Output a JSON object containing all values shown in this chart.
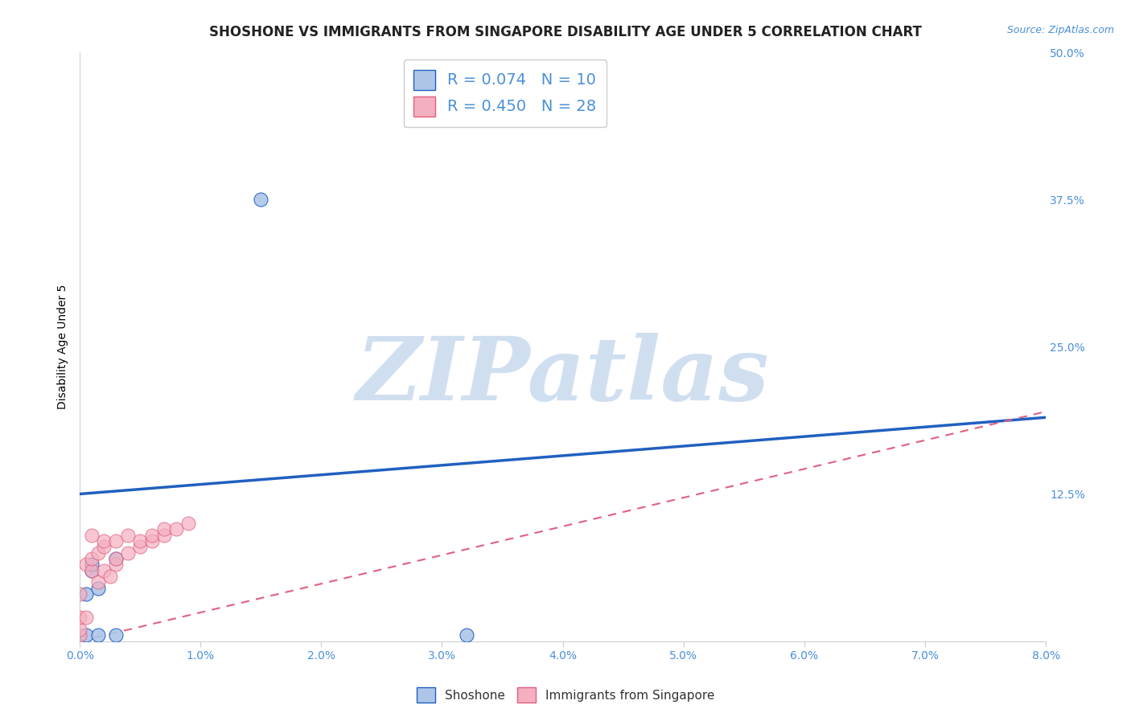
{
  "title": "SHOSHONE VS IMMIGRANTS FROM SINGAPORE DISABILITY AGE UNDER 5 CORRELATION CHART",
  "source": "Source: ZipAtlas.com",
  "xlabel": "",
  "ylabel": "Disability Age Under 5",
  "xlim": [
    0.0,
    0.08
  ],
  "ylim": [
    0.0,
    0.5
  ],
  "xticks": [
    0.0,
    0.01,
    0.02,
    0.03,
    0.04,
    0.05,
    0.06,
    0.07,
    0.08
  ],
  "xticklabels": [
    "0.0%",
    "1.0%",
    "2.0%",
    "3.0%",
    "4.0%",
    "5.0%",
    "6.0%",
    "7.0%",
    "8.0%"
  ],
  "yticks": [
    0.0,
    0.125,
    0.25,
    0.375,
    0.5
  ],
  "yticklabels": [
    "",
    "12.5%",
    "25.0%",
    "37.5%",
    "50.0%"
  ],
  "background_color": "#ffffff",
  "grid_color": "#d0d0d0",
  "shoshone_color": "#adc6e8",
  "singapore_color": "#f4afc0",
  "shoshone_line_color": "#2060c0",
  "singapore_line_color": "#e06080",
  "R_shoshone": 0.074,
  "N_shoshone": 10,
  "R_singapore": 0.45,
  "N_singapore": 28,
  "watermark": "ZIPatlas",
  "watermark_color": "#d0dff0",
  "title_fontsize": 12,
  "label_fontsize": 10,
  "tick_fontsize": 10,
  "shoshone_points_x": [
    0.0005,
    0.0005,
    0.001,
    0.001,
    0.0015,
    0.0015,
    0.003,
    0.003,
    0.032,
    0.015
  ],
  "shoshone_points_y": [
    0.005,
    0.04,
    0.06,
    0.065,
    0.005,
    0.045,
    0.005,
    0.07,
    0.005,
    0.375
  ],
  "singapore_points_x": [
    0.0,
    0.0,
    0.0,
    0.0,
    0.0005,
    0.0005,
    0.001,
    0.001,
    0.001,
    0.0015,
    0.0015,
    0.002,
    0.002,
    0.002,
    0.0025,
    0.003,
    0.003,
    0.003,
    0.004,
    0.004,
    0.005,
    0.005,
    0.006,
    0.006,
    0.007,
    0.007,
    0.008,
    0.009
  ],
  "singapore_points_y": [
    0.005,
    0.01,
    0.02,
    0.04,
    0.02,
    0.065,
    0.06,
    0.07,
    0.09,
    0.05,
    0.075,
    0.06,
    0.08,
    0.085,
    0.055,
    0.065,
    0.07,
    0.085,
    0.075,
    0.09,
    0.08,
    0.085,
    0.085,
    0.09,
    0.09,
    0.095,
    0.095,
    0.1
  ],
  "shoshone_line_x0": 0.0,
  "shoshone_line_y0": 0.125,
  "shoshone_line_x1": 0.08,
  "shoshone_line_y1": 0.19,
  "singapore_line_x0": 0.0,
  "singapore_line_y0": 0.0,
  "singapore_line_x1": 0.08,
  "singapore_line_y1": 0.195
}
